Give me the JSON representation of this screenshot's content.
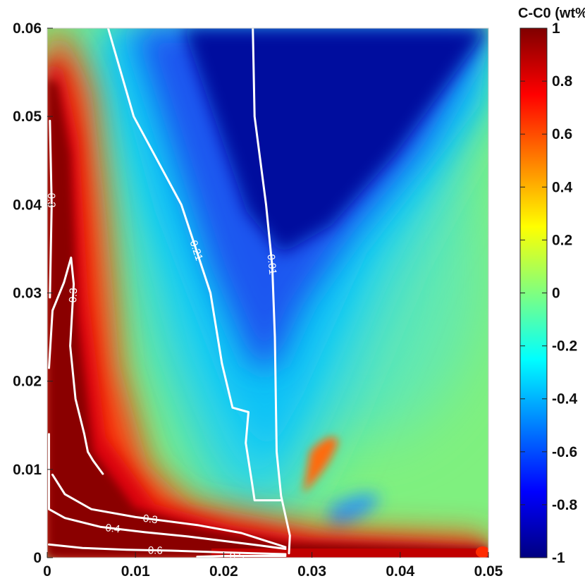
{
  "chart_data": {
    "type": "heatmap",
    "title": "",
    "xlabel": "",
    "ylabel": "",
    "xlim": [
      0,
      0.05
    ],
    "ylim": [
      0,
      0.06
    ],
    "x_ticks": [
      "0",
      "0.01",
      "0.02",
      "0.03",
      "0.04",
      "0.05"
    ],
    "y_ticks": [
      "0",
      "0.01",
      "0.02",
      "0.03",
      "0.04",
      "0.05",
      "0.06"
    ],
    "colorbar": {
      "title": "C-C0 (wt%)",
      "range": [
        -1,
        1
      ],
      "colormap": "jet",
      "ticks": [
        "1",
        "0.8",
        "0.6",
        "0.4",
        "0.2",
        "0",
        "-0.2",
        "-0.4",
        "-0.6",
        "-0.8",
        "-1"
      ]
    },
    "contour_levels": [
      {
        "label": "0.21",
        "points": [
          [
            0.0069,
            0.06
          ],
          [
            0.0098,
            0.05
          ],
          [
            0.0152,
            0.04
          ],
          [
            0.0185,
            0.03
          ],
          [
            0.0198,
            0.022
          ],
          [
            0.021,
            0.017
          ],
          [
            0.0228,
            0.0165
          ],
          [
            0.0225,
            0.013
          ],
          [
            0.0232,
            0.0085
          ],
          [
            0.0235,
            0.0065
          ],
          [
            0.0265,
            0.0065
          ]
        ]
      },
      {
        "label": "0.01",
        "points": [
          [
            0.0233,
            0.06
          ],
          [
            0.0235,
            0.05
          ],
          [
            0.0248,
            0.04
          ],
          [
            0.0255,
            0.033
          ],
          [
            0.0258,
            0.025
          ],
          [
            0.026,
            0.012
          ],
          [
            0.0265,
            0.007
          ],
          [
            0.0275,
            0.0025
          ],
          [
            0.0274,
            0.0005
          ]
        ]
      },
      {
        "label": "0.3",
        "points": [
          [
            0.0003,
            0.0495
          ],
          [
            0.0005,
            0.04
          ],
          [
            0.0003,
            0.0295
          ]
        ]
      },
      {
        "label": "0.3",
        "points": [
          [
            0.0002,
            0.0215
          ],
          [
            0.0006,
            0.028
          ],
          [
            0.0019,
            0.0312
          ],
          [
            0.0027,
            0.034
          ],
          [
            0.003,
            0.031
          ],
          [
            0.0026,
            0.024
          ],
          [
            0.0032,
            0.018
          ],
          [
            0.0042,
            0.014
          ],
          [
            0.0046,
            0.012
          ],
          [
            0.0052,
            0.011
          ],
          [
            0.0063,
            0.0095
          ]
        ]
      },
      {
        "label": "0.4",
        "points": [
          [
            0.0002,
            0.014
          ],
          [
            0.0002,
            0.0055
          ],
          [
            0.002,
            0.0045
          ],
          [
            0.006,
            0.0035
          ],
          [
            0.011,
            0.0029
          ],
          [
            0.016,
            0.0024
          ],
          [
            0.02,
            0.0019
          ],
          [
            0.024,
            0.0014
          ],
          [
            0.027,
            0.001
          ]
        ]
      },
      {
        "label": "0.3",
        "points": [
          [
            0.0006,
            0.0094
          ],
          [
            0.002,
            0.0072
          ],
          [
            0.005,
            0.0055
          ],
          [
            0.01,
            0.0046
          ],
          [
            0.017,
            0.0037
          ],
          [
            0.022,
            0.0028
          ],
          [
            0.027,
            0.0012
          ]
        ]
      },
      {
        "label": "0.6",
        "points": [
          [
            0.0002,
            0.0015
          ],
          [
            0.004,
            0.0011
          ],
          [
            0.009,
            0.0009
          ],
          [
            0.014,
            0.0008
          ],
          [
            0.02,
            0.0006
          ],
          [
            0.027,
            0.0004
          ]
        ]
      },
      {
        "label": "0.5",
        "points": [
          [
            0.017,
            0.0001
          ],
          [
            0.02,
            0.0002
          ],
          [
            0.027,
            0.0002
          ]
        ]
      }
    ]
  }
}
